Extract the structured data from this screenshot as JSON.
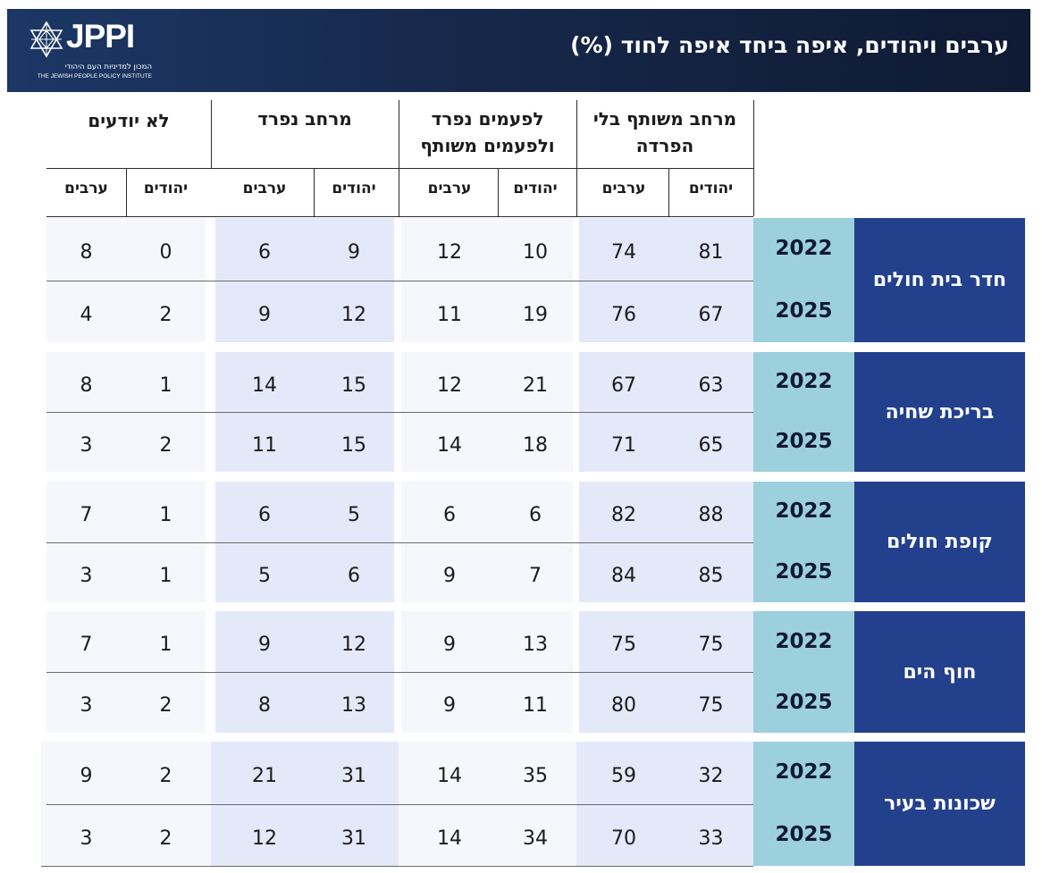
{
  "header": {
    "title": "ערבים ויהודים, איפה ביחד איפה לחוד (%)",
    "logo": {
      "wordmark": "JPPI",
      "hebrew_name": "המכון למדיניות העם היהודי",
      "english_name": "THE JEWISH PEOPLE POLICY INSTITUTE",
      "icon": "star-of-david-icon"
    }
  },
  "chart_data": {
    "type": "table",
    "title": "ערבים ויהודים, איפה ביחד איפה לחוד (%)",
    "column_groups": [
      {
        "label": "מרחב משותף בלי הפרדה",
        "columns": [
          "יהודים",
          "ערבים"
        ]
      },
      {
        "label": "לפעמים נפרד ולפעמים משותף",
        "columns": [
          "יהודים",
          "ערבים"
        ]
      },
      {
        "label": "מרחב נפרד",
        "columns": [
          "יהודים",
          "ערבים"
        ]
      },
      {
        "label": "לא יודעים",
        "columns": [
          "יהודים",
          "ערבים"
        ]
      }
    ],
    "rows": [
      {
        "category": "חדר בית חולים",
        "years": [
          {
            "year": "2022",
            "values": [
              81,
              74,
              10,
              12,
              9,
              6,
              0,
              8
            ]
          },
          {
            "year": "2025",
            "values": [
              67,
              76,
              19,
              11,
              12,
              9,
              2,
              4
            ]
          }
        ]
      },
      {
        "category": "בריכת שחיה",
        "years": [
          {
            "year": "2022",
            "values": [
              63,
              67,
              21,
              12,
              15,
              14,
              1,
              8
            ]
          },
          {
            "year": "2025",
            "values": [
              65,
              71,
              18,
              14,
              15,
              11,
              2,
              3
            ]
          }
        ]
      },
      {
        "category": "קופת חולים",
        "years": [
          {
            "year": "2022",
            "values": [
              88,
              82,
              6,
              6,
              5,
              6,
              1,
              7
            ]
          },
          {
            "year": "2025",
            "values": [
              85,
              84,
              7,
              9,
              6,
              5,
              1,
              3
            ]
          }
        ]
      },
      {
        "category": "חוף הים",
        "years": [
          {
            "year": "2022",
            "values": [
              75,
              75,
              13,
              9,
              12,
              9,
              1,
              7
            ]
          },
          {
            "year": "2025",
            "values": [
              75,
              80,
              11,
              9,
              13,
              8,
              2,
              3
            ]
          }
        ]
      },
      {
        "category": "שכונות בעיר",
        "years": [
          {
            "year": "2022",
            "values": [
              32,
              59,
              35,
              14,
              31,
              21,
              2,
              9
            ]
          },
          {
            "year": "2025",
            "values": [
              33,
              70,
              34,
              14,
              31,
              12,
              2,
              3
            ]
          }
        ]
      }
    ]
  },
  "colors": {
    "banner": "#16284a",
    "category_cell": "#23408d",
    "year_cell": "#9cd0dd",
    "shade_dark": "#e4e9fa",
    "shade_light": "#f6f7fd"
  }
}
